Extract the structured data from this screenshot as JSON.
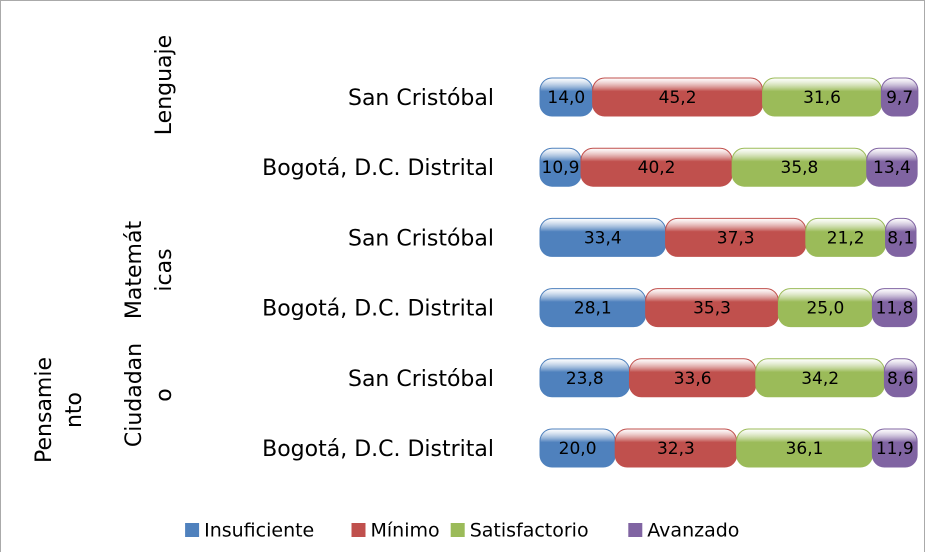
{
  "chart_data": {
    "type": "bar",
    "orientation": "horizontal",
    "stacked": true,
    "categories": [
      "San Cristóbal",
      "Bogotá, D.C. Distrital",
      "San Cristóbal",
      "Bogotá, D.C. Distrital",
      "San Cristóbal",
      "Bogotá, D.C. Distrital"
    ],
    "groups": [
      {
        "lines": [
          "Lenguaje"
        ],
        "rows": 2
      },
      {
        "lines": [
          "Matemát",
          "icas"
        ],
        "rows": 2
      },
      {
        "lines": [
          "Pensamie",
          "nto",
          "Ciudadan",
          "o"
        ],
        "rows": 2
      }
    ],
    "xlim": [
      0,
      100
    ],
    "legend": "bottom",
    "series": [
      {
        "name": "Insuficiente",
        "color": "#4f81bd",
        "values": [
          14.0,
          10.9,
          33.4,
          28.1,
          23.8,
          20.0
        ],
        "value_labels": [
          "14,0",
          "10,9",
          "33,4",
          "28,1",
          "23,8",
          "20,0"
        ]
      },
      {
        "name": "Mínimo",
        "color": "#c0504d",
        "values": [
          45.2,
          40.2,
          37.3,
          35.3,
          33.6,
          32.3
        ],
        "value_labels": [
          "45,2",
          "40,2",
          "37,3",
          "35,3",
          "33,6",
          "32,3"
        ]
      },
      {
        "name": "Satisfactorio",
        "color": "#9bbb59",
        "values": [
          31.6,
          35.8,
          21.2,
          25.0,
          34.2,
          36.1
        ],
        "value_labels": [
          "31,6",
          "35,8",
          "21,2",
          "25,0",
          "34,2",
          "36,1"
        ]
      },
      {
        "name": "Avanzado",
        "color": "#8064a2",
        "values": [
          9.7,
          13.4,
          8.1,
          11.8,
          8.6,
          11.9
        ],
        "value_labels": [
          "9,7",
          "13,4",
          "8,1",
          "11,8",
          "8,6",
          "11,9"
        ]
      }
    ]
  }
}
